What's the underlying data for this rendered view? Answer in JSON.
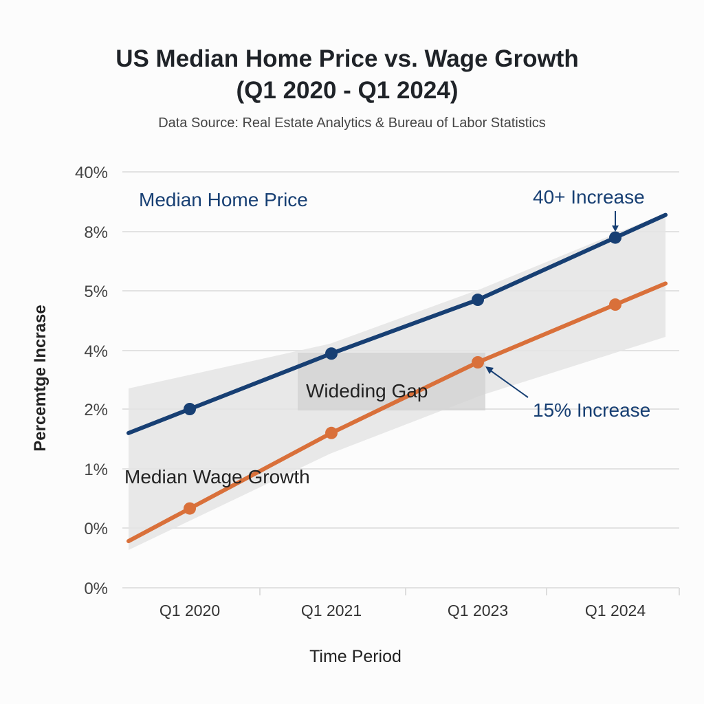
{
  "chart_data": {
    "type": "line",
    "title_line1": "US Median Home Price vs. Wage Growth",
    "title_line2": "(Q1 2020 - Q1 2024)",
    "subtitle": "Data Source: Real Estate Analytics & Bureau of Labor Statistics",
    "xlabel": "Time Period",
    "ylabel": "Percemtge Incrase",
    "categories": [
      "Q1 2020",
      "Q1 2021",
      "Q1 2023",
      "Q1 2024"
    ],
    "y_tick_labels": [
      "40%",
      "8%",
      "5%",
      "4%",
      "2%",
      "1%",
      "0%",
      "0%"
    ],
    "grid": true,
    "series": [
      {
        "name": "Median Home Price",
        "color": "#173f73",
        "values": [
          2.0,
          3.9,
          4.85,
          7.7
        ]
      },
      {
        "name": "Median Wage Growth",
        "color": "#d9703a",
        "values": [
          0.33,
          1.6,
          3.6,
          4.77
        ]
      }
    ],
    "annotations": {
      "home_label": "Median Home Price",
      "wage_label": "Median Wage Growth",
      "gap_label": "Wideding Gap",
      "home_increase": "40+ Increase",
      "wage_increase": "15% Increase"
    },
    "colors": {
      "band": "#e3e3e3",
      "gap_box": "#d6d6d6",
      "grid": "#e2e2e2",
      "annotation_blue": "#173f73"
    }
  }
}
